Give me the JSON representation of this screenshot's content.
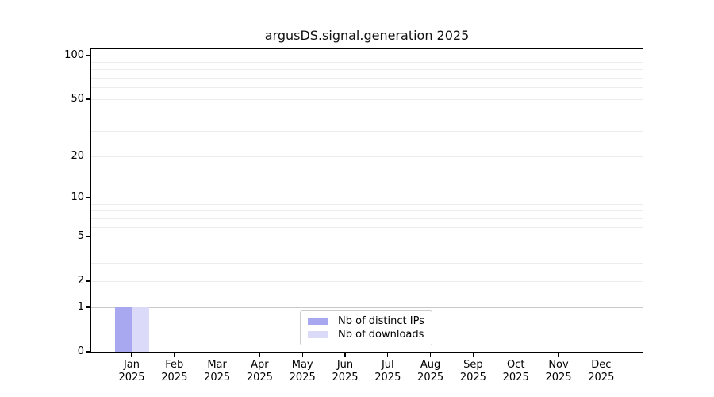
{
  "figure": {
    "background": "#ffffff",
    "axis_color": "#000000"
  },
  "chart_data": {
    "type": "bar",
    "title": "argusDS.signal.generation 2025",
    "categories": [
      "Jan 2025",
      "Feb 2025",
      "Mar 2025",
      "Apr 2025",
      "May 2025",
      "Jun 2025",
      "Jul 2025",
      "Aug 2025",
      "Sep 2025",
      "Oct 2025",
      "Nov 2025",
      "Dec 2025"
    ],
    "series": [
      {
        "name": "Nb of distinct IPs",
        "color": "#a8a8f0",
        "values": [
          1,
          0,
          0,
          0,
          0,
          0,
          0,
          0,
          0,
          0,
          0,
          0
        ]
      },
      {
        "name": "Nb of downloads",
        "color": "#dbdbf9",
        "values": [
          1,
          0,
          0,
          0,
          0,
          0,
          0,
          0,
          0,
          0,
          0,
          0
        ]
      }
    ],
    "xlabel": "",
    "ylabel": "",
    "yscale": "log1p",
    "ylim": [
      0,
      110
    ],
    "yticks": [
      0,
      1,
      2,
      5,
      10,
      20,
      50,
      100
    ],
    "grid": {
      "on": true,
      "major_lines": [
        1,
        10,
        100
      ],
      "minor_lines": [
        2,
        3,
        4,
        5,
        6,
        7,
        8,
        9,
        20,
        30,
        40,
        50,
        60,
        70,
        80,
        90
      ],
      "major_color": "#c9c9c9",
      "minor_color": "#ececec"
    },
    "legend": {
      "position": "lower center",
      "entries": [
        "Nb of distinct IPs",
        "Nb of downloads"
      ]
    }
  }
}
